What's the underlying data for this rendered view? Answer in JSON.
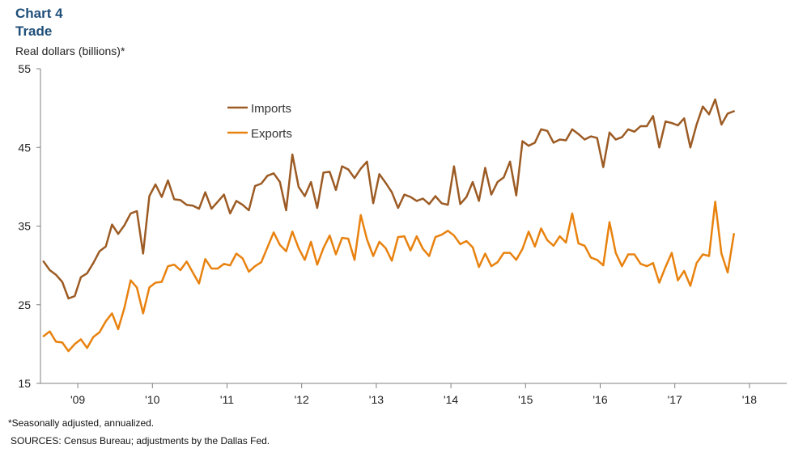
{
  "chart_number": "Chart 4",
  "title": "Trade",
  "ylabel": "Real dollars (billions)*",
  "note": "*Seasonally adjusted, annualized.",
  "sources": "SOURCES: Census Bureau; adjustments by the Dallas Fed.",
  "colors": {
    "imports": "#9c5b24",
    "exports": "#e8820f",
    "axis": "#808080"
  },
  "chart_data": {
    "type": "line",
    "title": "Trade",
    "ylabel": "Real dollars (billions)*",
    "ylim": [
      15,
      55
    ],
    "yticks": [
      15,
      25,
      35,
      45,
      55
    ],
    "x_start": "2008-07",
    "x_end": "2018-07",
    "x_step": "month",
    "xtick_labels": [
      "'09",
      "'10",
      "'11",
      "'12",
      "'13",
      "'14",
      "'15",
      "'16",
      "'17",
      "'18"
    ],
    "legend_position": "top-center",
    "series": [
      {
        "name": "Imports",
        "color": "#9c5b24",
        "values": [
          30.5,
          29.4,
          28.8,
          27.9,
          25.8,
          26.1,
          28.5,
          29.0,
          30.3,
          31.8,
          32.4,
          35.2,
          34.0,
          35.1,
          36.6,
          36.9,
          31.5,
          38.8,
          40.3,
          38.7,
          40.8,
          38.4,
          38.3,
          37.7,
          37.6,
          37.2,
          39.3,
          37.2,
          38.1,
          39.0,
          36.6,
          38.2,
          37.7,
          37.0,
          40.1,
          40.4,
          41.4,
          41.7,
          40.6,
          37.0,
          44.1,
          40.0,
          38.8,
          40.6,
          37.3,
          41.8,
          41.9,
          39.6,
          42.6,
          42.2,
          41.1,
          42.3,
          43.2,
          37.9,
          41.6,
          40.5,
          39.3,
          37.3,
          39.0,
          38.7,
          38.2,
          38.5,
          37.8,
          38.8,
          37.9,
          37.7,
          42.6,
          37.8,
          38.7,
          40.6,
          38.2,
          42.4,
          39.0,
          40.6,
          41.2,
          43.2,
          38.9,
          45.8,
          45.2,
          45.6,
          47.3,
          47.1,
          45.6,
          46.0,
          45.9,
          47.3,
          46.7,
          46.0,
          46.4,
          46.2,
          42.5,
          46.9,
          46.0,
          46.3,
          47.3,
          47.0,
          47.7,
          47.7,
          49.0,
          45.0,
          48.3,
          48.1,
          47.8,
          48.7,
          45.0,
          47.9,
          50.2,
          49.2,
          51.1,
          47.9,
          49.3,
          49.6
        ]
      },
      {
        "name": "Exports",
        "color": "#e8820f",
        "values": [
          21.0,
          21.6,
          20.3,
          20.2,
          19.1,
          20.0,
          20.6,
          19.5,
          20.9,
          21.5,
          22.9,
          23.9,
          21.9,
          24.6,
          28.1,
          27.2,
          23.9,
          27.2,
          27.8,
          27.9,
          29.9,
          30.1,
          29.4,
          30.5,
          29.1,
          27.7,
          30.8,
          29.6,
          29.6,
          30.2,
          30.0,
          31.5,
          30.9,
          29.2,
          29.9,
          30.4,
          32.3,
          34.2,
          32.6,
          31.8,
          34.3,
          32.2,
          30.7,
          33.0,
          30.1,
          32.2,
          33.8,
          31.4,
          33.5,
          33.4,
          30.7,
          36.4,
          33.3,
          31.2,
          33.0,
          32.2,
          30.6,
          33.6,
          33.7,
          31.9,
          33.7,
          32.1,
          31.2,
          33.6,
          33.9,
          34.4,
          33.8,
          32.7,
          33.1,
          32.3,
          29.8,
          31.5,
          29.9,
          30.4,
          31.6,
          31.6,
          30.7,
          32.1,
          34.3,
          32.4,
          34.7,
          33.2,
          32.5,
          33.7,
          32.9,
          36.6,
          32.8,
          32.5,
          31.0,
          30.7,
          30.0,
          35.5,
          31.6,
          29.9,
          31.4,
          31.4,
          30.2,
          29.9,
          30.3,
          27.8,
          29.8,
          31.6,
          28.1,
          29.3,
          27.4,
          30.3,
          31.4,
          31.2,
          38.1,
          31.5,
          29.1,
          34.0
        ]
      }
    ]
  }
}
